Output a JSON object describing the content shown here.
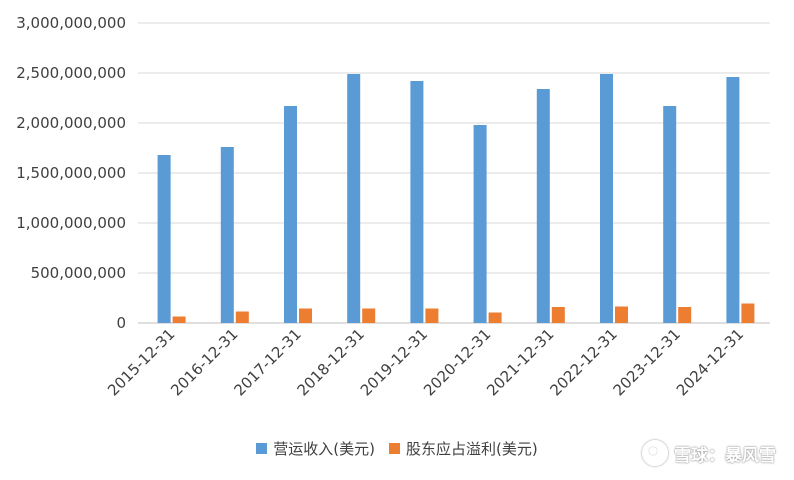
{
  "chart_data": {
    "type": "bar",
    "categories": [
      "2015-12-31",
      "2016-12-31",
      "2017-12-31",
      "2018-12-31",
      "2019-12-31",
      "2020-12-31",
      "2021-12-31",
      "2022-12-31",
      "2023-12-31",
      "2024-12-31"
    ],
    "series": [
      {
        "name": "营运收入(美元)",
        "color": "#5b9bd5",
        "values": [
          1680000000,
          1760000000,
          2170000000,
          2490000000,
          2420000000,
          1980000000,
          2340000000,
          2490000000,
          2170000000,
          2460000000
        ]
      },
      {
        "name": "股东应占溢利(美元)",
        "color": "#ed7d31",
        "values": [
          65000000,
          115000000,
          145000000,
          145000000,
          145000000,
          105000000,
          160000000,
          165000000,
          160000000,
          195000000
        ]
      }
    ],
    "ylim": [
      0,
      3000000000
    ],
    "yticks": [
      0,
      500000000,
      1000000000,
      1500000000,
      2000000000,
      2500000000,
      3000000000
    ],
    "ytick_labels": [
      "0",
      "500,000,000",
      "1,000,000,000",
      "1,500,000,000",
      "2,000,000,000",
      "2,500,000,000",
      "3,000,000,000"
    ],
    "grid": true,
    "legend_position": "bottom"
  },
  "watermark": {
    "text": "雪球：暴风雪"
  }
}
